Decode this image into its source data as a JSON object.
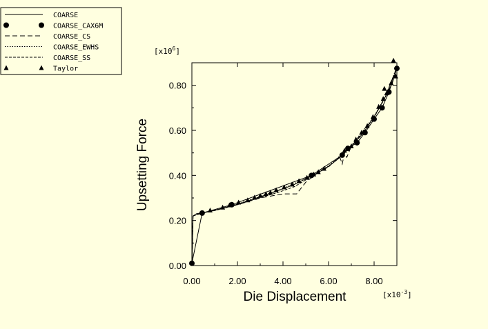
{
  "chart_data": {
    "type": "line",
    "xlabel": "Die Displacement",
    "ylabel": "Upsetting Force",
    "x_multiplier": {
      "base": "[x10",
      "exp": "-3",
      "close": "]"
    },
    "y_multiplier": {
      "base": "[x10",
      "exp": "6",
      "close": "]"
    },
    "xlim": [
      0,
      9.0
    ],
    "ylim": [
      0,
      0.9
    ],
    "x_ticks": [
      0,
      2,
      4,
      6,
      8
    ],
    "x_tick_labels": [
      "0.00",
      "2.00",
      "4.00",
      "6.00",
      "8.00"
    ],
    "y_ticks": [
      0,
      0.2,
      0.4,
      0.6,
      0.8
    ],
    "y_tick_labels": [
      "0.00",
      "0.20",
      "0.40",
      "0.60",
      "0.80"
    ],
    "grid": false,
    "legend_position": "top-left",
    "series": [
      {
        "name": "COARSE",
        "style": "solid",
        "marker": "none",
        "x": [
          0,
          0.05,
          0.2,
          0.5,
          1.0,
          1.5,
          2.0,
          2.5,
          3.0,
          3.5,
          4.0,
          4.5,
          5.0,
          5.5,
          6.0,
          6.5,
          7.0,
          7.5,
          8.0,
          8.5,
          8.8,
          9.0
        ],
        "y": [
          0,
          0.22,
          0.23,
          0.235,
          0.245,
          0.258,
          0.272,
          0.288,
          0.305,
          0.322,
          0.34,
          0.36,
          0.385,
          0.41,
          0.44,
          0.48,
          0.53,
          0.585,
          0.66,
          0.75,
          0.81,
          0.88
        ]
      },
      {
        "name": "COARSE_CAX6M",
        "style": "solid",
        "marker": "circle",
        "x": [
          0,
          0.45,
          1.75,
          5.25,
          6.6,
          6.85,
          7.25,
          7.6,
          8.0,
          8.35,
          8.65,
          9.0
        ],
        "y": [
          0.01,
          0.233,
          0.27,
          0.4,
          0.49,
          0.52,
          0.545,
          0.59,
          0.65,
          0.7,
          0.77,
          0.875
        ]
      },
      {
        "name": "COARSE_CS",
        "style": "dashed",
        "marker": "none",
        "x": [
          0,
          0.05,
          0.5,
          1.0,
          2.0,
          2.5,
          3.0,
          4.0,
          4.6,
          5.0,
          5.5,
          6.0,
          6.5,
          6.6,
          6.7,
          6.8,
          7.0,
          7.5,
          8.0,
          8.5,
          9.0
        ],
        "y": [
          0,
          0.22,
          0.235,
          0.245,
          0.27,
          0.285,
          0.3,
          0.318,
          0.318,
          0.37,
          0.41,
          0.44,
          0.48,
          0.45,
          0.5,
          0.48,
          0.53,
          0.585,
          0.66,
          0.75,
          0.88
        ]
      },
      {
        "name": "COARSE_EWHS",
        "style": "dotted",
        "marker": "none",
        "x": [
          0,
          0.05,
          0.5,
          1.0,
          2.0,
          3.0,
          4.0,
          5.0,
          6.0,
          7.0,
          8.0,
          8.5,
          9.0
        ],
        "y": [
          0,
          0.22,
          0.235,
          0.246,
          0.273,
          0.307,
          0.342,
          0.387,
          0.442,
          0.532,
          0.662,
          0.752,
          0.882
        ]
      },
      {
        "name": "COARSE_SS",
        "style": "longdash",
        "marker": "none",
        "x": [
          0,
          0.05,
          0.5,
          1.0,
          2.0,
          3.0,
          3.5,
          4.0,
          4.5,
          5.0,
          6.0,
          7.0,
          8.0,
          8.5,
          9.0
        ],
        "y": [
          0,
          0.22,
          0.234,
          0.244,
          0.27,
          0.302,
          0.316,
          0.332,
          0.35,
          0.38,
          0.438,
          0.528,
          0.658,
          0.748,
          0.878
        ]
      },
      {
        "name": "Taylor",
        "style": "solid",
        "marker": "triangle",
        "x": [
          0.8,
          1.35,
          1.65,
          2.05,
          2.45,
          2.75,
          3.0,
          3.25,
          3.45,
          3.7,
          4.05,
          4.4,
          4.7,
          5.05,
          5.35,
          5.55,
          5.8,
          6.7,
          7.0,
          7.2,
          7.45,
          7.7,
          7.95,
          8.2,
          8.4,
          8.55,
          8.75,
          8.95
        ],
        "y": [
          0.245,
          0.258,
          0.268,
          0.28,
          0.29,
          0.302,
          0.31,
          0.318,
          0.324,
          0.335,
          0.348,
          0.36,
          0.375,
          0.39,
          0.405,
          0.415,
          0.43,
          0.51,
          0.53,
          0.56,
          0.59,
          0.62,
          0.66,
          0.705,
          0.74,
          0.765,
          0.81,
          0.84
        ]
      }
    ],
    "extra_markers": [
      {
        "series": "Taylor",
        "x": 8.45,
        "y": 0.785
      },
      {
        "series": "Taylor",
        "x": 8.85,
        "y": 0.91
      }
    ]
  }
}
